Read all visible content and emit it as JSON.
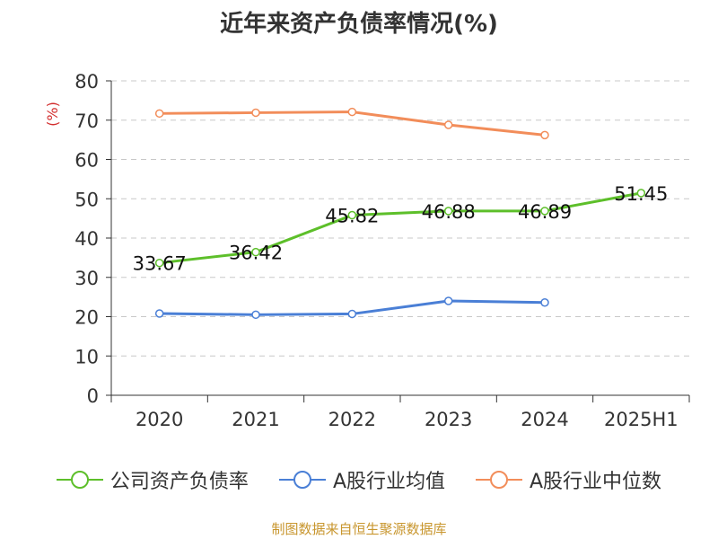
{
  "chart_data": {
    "type": "line",
    "title": "近年来资产负债率情况(%)",
    "ylabel": "(%)",
    "xlabel": "",
    "categories": [
      "2020",
      "2021",
      "2022",
      "2023",
      "2024",
      "2025H1"
    ],
    "ylim": [
      0,
      80
    ],
    "yticks": [
      "0",
      "10",
      "20",
      "30",
      "40",
      "50",
      "60",
      "70",
      "80"
    ],
    "grid": true,
    "legend_position": "bottom",
    "series": [
      {
        "name": "公司资产负债率",
        "color": "#5dbf2a",
        "values": [
          33.67,
          36.42,
          45.82,
          46.88,
          46.89,
          51.45
        ],
        "labels": [
          "33.67",
          "36.42",
          "45.82",
          "46.88",
          "46.89",
          "51.45"
        ]
      },
      {
        "name": "A股行业均值",
        "color": "#4a7fd6",
        "values": [
          20.8,
          20.5,
          20.7,
          24.0,
          23.6,
          null
        ],
        "labels": []
      },
      {
        "name": "A股行业中位数",
        "color": "#f28d5a",
        "values": [
          71.7,
          71.9,
          72.1,
          68.8,
          66.2,
          null
        ],
        "labels": []
      }
    ]
  },
  "footer": {
    "source": "制图数据来自恒生聚源数据库"
  }
}
